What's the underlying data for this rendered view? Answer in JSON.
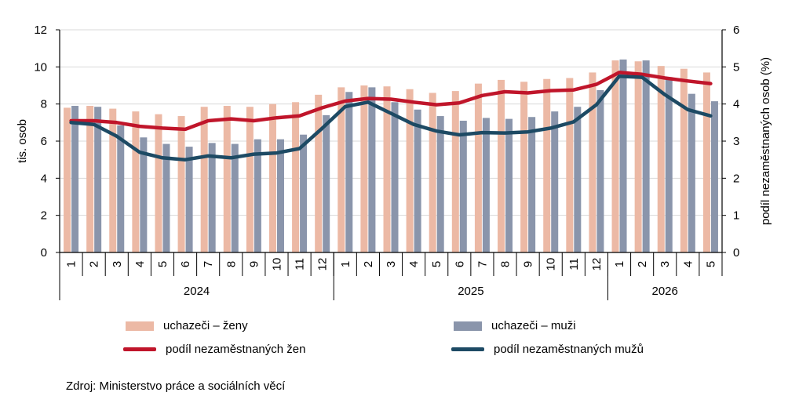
{
  "chart_data": {
    "type": "bar",
    "months": [
      "1",
      "2",
      "3",
      "4",
      "5",
      "6",
      "7",
      "8",
      "9",
      "10",
      "11",
      "12",
      "1",
      "2",
      "3",
      "4",
      "5",
      "6",
      "7",
      "8",
      "9",
      "10",
      "11",
      "12",
      "1",
      "2",
      "3",
      "4",
      "5"
    ],
    "years": [
      {
        "label": "2024",
        "count": 12
      },
      {
        "label": "2025",
        "count": 12
      },
      {
        "label": "2026",
        "count": 5
      }
    ],
    "ylabel": "tis. osob",
    "y2label": "podíl nezaměstnaných osob (%)",
    "ylim": [
      0,
      12
    ],
    "y2lim": [
      0,
      6
    ],
    "yticks": [
      "0",
      "2",
      "4",
      "6",
      "8",
      "10",
      "12"
    ],
    "y2ticks": [
      "0",
      "1",
      "2",
      "3",
      "4",
      "5",
      "6"
    ],
    "series": [
      {
        "name": "uchazeči – ženy",
        "kind": "bar",
        "axis": "left",
        "color": "#ecb9a5",
        "values": [
          7.8,
          7.9,
          7.75,
          7.6,
          7.45,
          7.35,
          7.85,
          7.9,
          7.85,
          8.0,
          8.1,
          8.5,
          8.9,
          9.0,
          8.95,
          8.8,
          8.6,
          8.7,
          9.1,
          9.3,
          9.2,
          9.35,
          9.4,
          9.7,
          10.35,
          10.3,
          10.05,
          9.9,
          9.7
        ]
      },
      {
        "name": "uchazeči – muži",
        "kind": "bar",
        "axis": "left",
        "color": "#8a95ab",
        "values": [
          7.9,
          7.85,
          6.85,
          6.2,
          5.85,
          5.7,
          5.9,
          5.85,
          6.1,
          6.1,
          6.35,
          7.4,
          8.65,
          8.9,
          8.1,
          7.7,
          7.35,
          7.1,
          7.25,
          7.2,
          7.3,
          7.6,
          7.85,
          8.75,
          10.4,
          10.35,
          9.45,
          8.55,
          8.15
        ]
      },
      {
        "name": "podíl nezaměstnaných žen",
        "kind": "line",
        "axis": "right",
        "color": "#c0152a",
        "values": [
          3.55,
          3.55,
          3.5,
          3.4,
          3.35,
          3.32,
          3.55,
          3.6,
          3.55,
          3.63,
          3.68,
          3.9,
          4.08,
          4.15,
          4.13,
          4.05,
          3.98,
          4.03,
          4.23,
          4.33,
          4.3,
          4.36,
          4.38,
          4.53,
          4.85,
          4.8,
          4.7,
          4.62,
          4.55
        ]
      },
      {
        "name": "podíl nezaměstnaných mužů",
        "kind": "line",
        "axis": "right",
        "color": "#1d4a64",
        "values": [
          3.5,
          3.45,
          3.13,
          2.7,
          2.55,
          2.5,
          2.6,
          2.55,
          2.65,
          2.68,
          2.8,
          3.35,
          3.93,
          4.05,
          3.75,
          3.45,
          3.27,
          3.17,
          3.23,
          3.22,
          3.25,
          3.35,
          3.52,
          3.98,
          4.75,
          4.72,
          4.25,
          3.85,
          3.68
        ]
      }
    ]
  },
  "legend": {
    "women_bar": "uchazeči – ženy",
    "men_bar": "uchazeči – muži",
    "women_line": "podíl nezaměstnaných žen",
    "men_line": "podíl nezaměstnaných mužů"
  },
  "colors": {
    "women_bar": "#ecb9a5",
    "men_bar": "#8a95ab",
    "women_line": "#c0152a",
    "men_line": "#1d4a64",
    "grid": "#d9d9d9"
  },
  "source": "Zdroj: Ministerstvo práce a sociálních věcí"
}
